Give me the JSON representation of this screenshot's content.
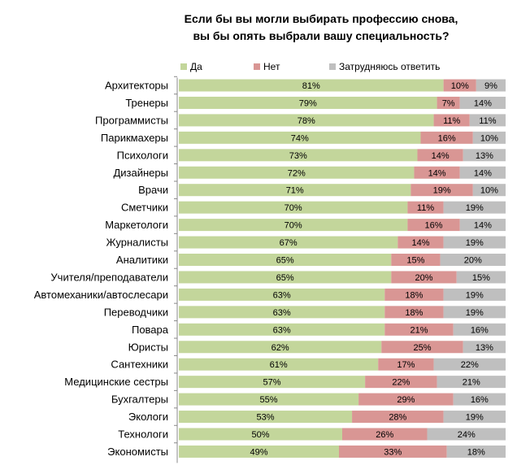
{
  "chart_data": {
    "type": "bar",
    "orientation": "horizontal",
    "stacked": true,
    "title_line1": "Если бы вы могли выбирать профессию снова,",
    "title_line2": "вы бы опять выбрали вашу специальность?",
    "legend_position": "top",
    "colors": {
      "yes": "#c3d69b",
      "no": "#d99694",
      "unsure": "#bfbfbf"
    },
    "xlim": [
      0,
      100
    ],
    "categories": [
      "Архитекторы",
      "Тренеры",
      "Программисты",
      "Парикмахеры",
      "Психологи",
      "Дизайнеры",
      "Врачи",
      "Сметчики",
      "Маркетологи",
      "Журналисты",
      "Аналитики",
      "Учителя/преподаватели",
      "Автомеханики/автослесари",
      "Переводчики",
      "Повара",
      "Юристы",
      "Сантехники",
      "Медицинские сестры",
      "Бухгалтеры",
      "Экологи",
      "Технологи",
      "Экономисты"
    ],
    "series": [
      {
        "name": "Да",
        "values": [
          81,
          79,
          78,
          74,
          73,
          72,
          71,
          70,
          70,
          67,
          65,
          65,
          63,
          63,
          63,
          62,
          61,
          57,
          55,
          53,
          50,
          49
        ]
      },
      {
        "name": "Нет",
        "values": [
          10,
          7,
          11,
          16,
          14,
          14,
          19,
          11,
          16,
          14,
          15,
          20,
          18,
          18,
          21,
          25,
          17,
          22,
          29,
          28,
          26,
          33
        ]
      },
      {
        "name": "Затрудняюсь ответить",
        "values": [
          9,
          14,
          11,
          10,
          13,
          14,
          10,
          19,
          14,
          19,
          20,
          15,
          19,
          19,
          16,
          13,
          22,
          21,
          16,
          19,
          24,
          18
        ]
      }
    ]
  }
}
